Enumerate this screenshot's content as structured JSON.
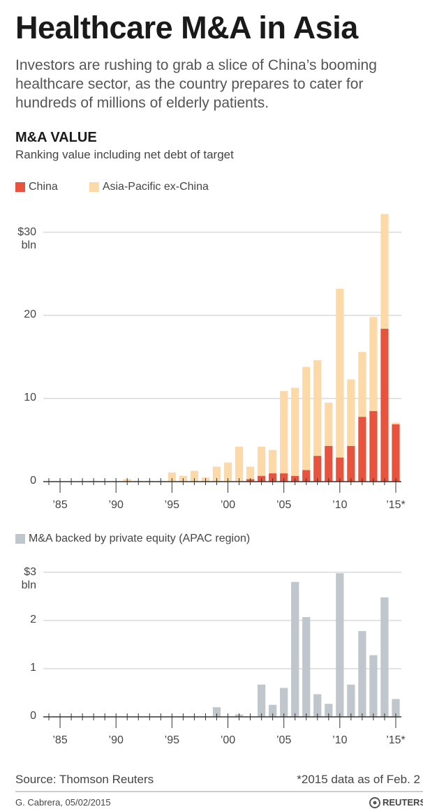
{
  "header": {
    "title": "Healthcare M&A in Asia",
    "subtitle": "Investors are rushing to grab a slice of China’s booming healthcare sector, as the country prepares to cater for hundreds of millions of elderly patients.",
    "section_title": "M&A VALUE",
    "section_subtitle": "Ranking value including net debt of target"
  },
  "chart_data": [
    {
      "type": "bar",
      "stacked": true,
      "categories": [
        null,
        "’85",
        null,
        null,
        null,
        null,
        "’90",
        null,
        null,
        null,
        null,
        "’95",
        null,
        null,
        null,
        null,
        "’00",
        null,
        null,
        null,
        null,
        "’05",
        null,
        null,
        null,
        null,
        "’10",
        null,
        null,
        null,
        null,
        "’15*"
      ],
      "series": [
        {
          "name": "China",
          "color": "#e8533d",
          "values": [
            0,
            0,
            0,
            0,
            0,
            0,
            0,
            0,
            0,
            0,
            0,
            0,
            0,
            0,
            0,
            0,
            0,
            0,
            0.3,
            0.7,
            1.0,
            1.0,
            0.7,
            1.4,
            3.1,
            4.3,
            2.9,
            4.3,
            7.8,
            8.5,
            18.4,
            6.9
          ]
        },
        {
          "name": "Asia-Pacific ex-China",
          "color": "#fdd9a8",
          "values": [
            0,
            0,
            0,
            0,
            0.1,
            0,
            0,
            0.3,
            0.1,
            0.1,
            0.1,
            1.1,
            0.7,
            1.3,
            0.5,
            1.8,
            2.3,
            4.2,
            1.5,
            3.5,
            2.8,
            9.9,
            10.6,
            12.4,
            11.5,
            5.2,
            20.3,
            8.0,
            7.8,
            11.3,
            13.8,
            0.2
          ]
        }
      ],
      "ylim": [
        0,
        32.5
      ],
      "yticks": [
        0,
        10,
        20,
        {
          "value": 30,
          "label": "$30 bln"
        }
      ],
      "grid": true
    },
    {
      "type": "bar",
      "categories": [
        null,
        "’85",
        null,
        null,
        null,
        null,
        "’90",
        null,
        null,
        null,
        null,
        "’95",
        null,
        null,
        null,
        null,
        "’00",
        null,
        null,
        null,
        null,
        "’05",
        null,
        null,
        null,
        null,
        "’10",
        null,
        null,
        null,
        null,
        "’15*"
      ],
      "series": [
        {
          "name": "M&A backed by private equity (APAC region)",
          "color": "#bfc6cc",
          "values": [
            0,
            0,
            0,
            0,
            0,
            0,
            0,
            0,
            0,
            0,
            0,
            0,
            0,
            0,
            0,
            0.2,
            0,
            0.05,
            0,
            0.67,
            0.25,
            0.6,
            2.8,
            2.07,
            0.47,
            0.27,
            2.98,
            0.67,
            1.78,
            1.28,
            2.48,
            0.37
          ]
        }
      ],
      "ylim": [
        0,
        3.1
      ],
      "yticks": [
        0,
        1,
        2,
        {
          "value": 3,
          "label": "$3 bln"
        }
      ],
      "grid": true
    }
  ],
  "footer": {
    "source": "Source: Thomson Reuters",
    "note": "*2015 data as of Feb. 2",
    "credit": "G. Cabrera, 05/02/2015",
    "logo": "REUTERS"
  }
}
